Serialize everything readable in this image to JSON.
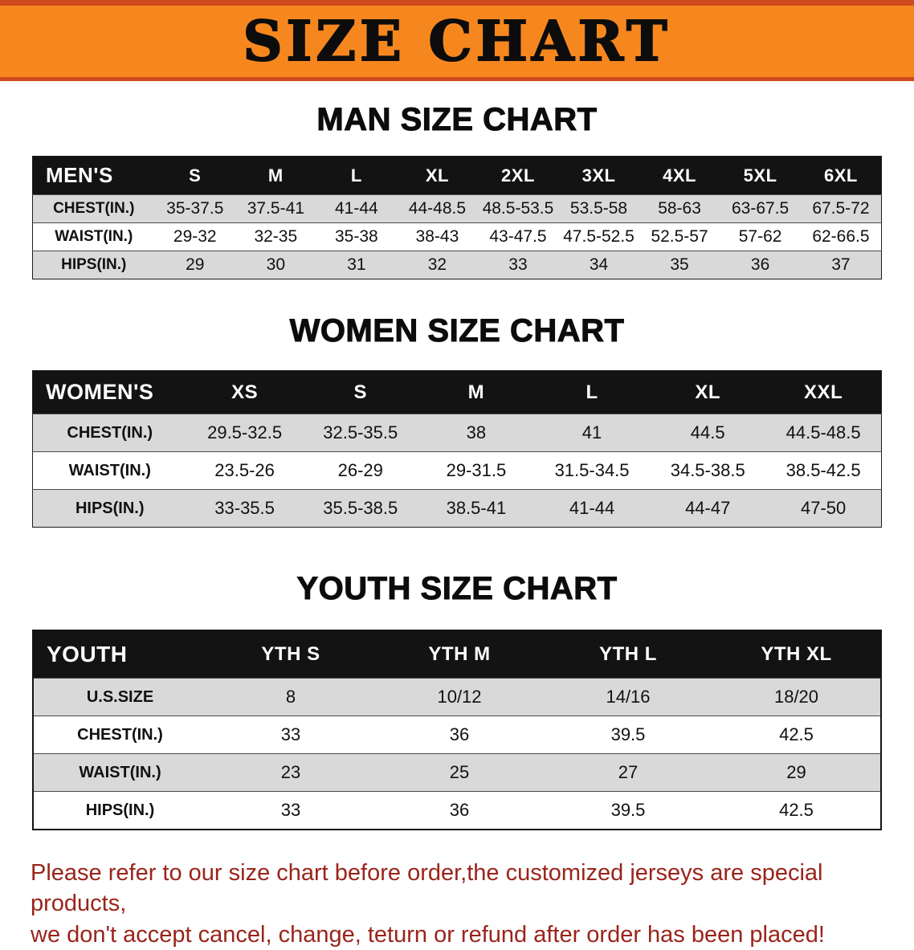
{
  "banner": {
    "title": "SIZE CHART"
  },
  "men": {
    "heading": "MAN SIZE CHART",
    "table": {
      "header": [
        "MEN'S",
        "S",
        "M",
        "L",
        "XL",
        "2XL",
        "3XL",
        "4XL",
        "5XL",
        "6XL"
      ],
      "rows": [
        [
          "CHEST(IN.)",
          "35-37.5",
          "37.5-41",
          "41-44",
          "44-48.5",
          "48.5-53.5",
          "53.5-58",
          "58-63",
          "63-67.5",
          "67.5-72"
        ],
        [
          "WAIST(IN.)",
          "29-32",
          "32-35",
          "35-38",
          "38-43",
          "43-47.5",
          "47.5-52.5",
          "52.5-57",
          "57-62",
          "62-66.5"
        ],
        [
          "HIPS(IN.)",
          "29",
          "30",
          "31",
          "32",
          "33",
          "34",
          "35",
          "36",
          "37"
        ]
      ]
    }
  },
  "women": {
    "heading": "WOMEN SIZE CHART",
    "table": {
      "header": [
        "WOMEN'S",
        "XS",
        "S",
        "M",
        "L",
        "XL",
        "XXL"
      ],
      "rows": [
        [
          "CHEST(IN.)",
          "29.5-32.5",
          "32.5-35.5",
          "38",
          "41",
          "44.5",
          "44.5-48.5"
        ],
        [
          "WAIST(IN.)",
          "23.5-26",
          "26-29",
          "29-31.5",
          "31.5-34.5",
          "34.5-38.5",
          "38.5-42.5"
        ],
        [
          "HIPS(IN.)",
          "33-35.5",
          "35.5-38.5",
          "38.5-41",
          "41-44",
          "44-47",
          "47-50"
        ]
      ]
    }
  },
  "youth": {
    "heading": "YOUTH SIZE CHART",
    "table": {
      "header": [
        "YOUTH",
        "YTH S",
        "YTH M",
        "YTH L",
        "YTH XL"
      ],
      "rows": [
        [
          "U.S.SIZE",
          "8",
          "10/12",
          "14/16",
          "18/20"
        ],
        [
          "CHEST(IN.)",
          "33",
          "36",
          "39.5",
          "42.5"
        ],
        [
          "WAIST(IN.)",
          "23",
          "25",
          "27",
          "29"
        ],
        [
          "HIPS(IN.)",
          "33",
          "36",
          "39.5",
          "42.5"
        ]
      ]
    }
  },
  "disclaimer": {
    "line1": "Please refer to our size chart before order,the customized jerseys are special products,",
    "line2": "we don't accept cancel, change, teturn or refund after order has been placed!"
  },
  "colors": {
    "banner_bg": "#f6871f",
    "banner_edge": "#cf4a1e",
    "table_header_bg": "#131313",
    "row_stripe": "#d9d9d9",
    "disclaimer_text": "#9a241a"
  }
}
